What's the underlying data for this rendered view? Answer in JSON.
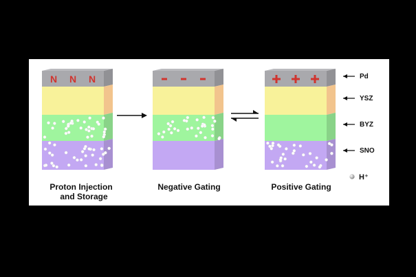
{
  "colors": {
    "pd": "#a9a9ad",
    "ysz": "#f8f29a",
    "byz": "#9ff59e",
    "sno": "#c3a8f3",
    "sign": "#d0342e",
    "side": "#f2c48d"
  },
  "stacks": [
    {
      "id": "stack-1",
      "caption": "Proton Injection\n  and Storage",
      "caption_line1": "Proton Injection",
      "caption_line2": "and Storage",
      "symbols": [
        "N",
        "N",
        "N"
      ],
      "proton_layers": [
        "byz",
        "sno"
      ]
    },
    {
      "id": "stack-2",
      "caption": "Negative Gating",
      "symbols": [
        "-",
        "-",
        "-"
      ],
      "proton_layers": [
        "byz"
      ]
    },
    {
      "id": "stack-3",
      "caption": "Positive Gating",
      "symbols": [
        "+",
        "+",
        "+"
      ],
      "proton_layers": [
        "sno"
      ]
    }
  ],
  "legend": {
    "layers": [
      {
        "key": "pd",
        "label": "Pd"
      },
      {
        "key": "ysz",
        "label": "YSZ"
      },
      {
        "key": "byz",
        "label": "BYZ"
      },
      {
        "key": "sno",
        "label": "SNO"
      }
    ],
    "proton_label": "H⁺"
  },
  "arrows": {
    "forward": "single-right-arrow",
    "reversible": "equilibrium-arrows"
  }
}
